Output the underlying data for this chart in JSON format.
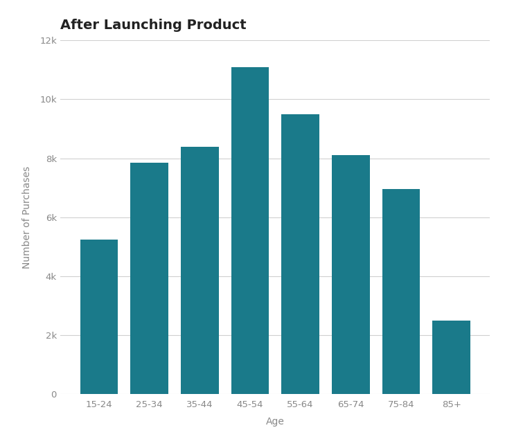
{
  "title": "After Launching Product",
  "categories": [
    "15-24",
    "25-34",
    "35-44",
    "45-54",
    "55-64",
    "65-74",
    "75-84",
    "85+"
  ],
  "values": [
    5250,
    7850,
    8400,
    11100,
    9500,
    8100,
    6950,
    2500
  ],
  "bar_color": "#1a7a8a",
  "xlabel": "Age",
  "ylabel": "Number of Purchases",
  "ylim": [
    0,
    12000
  ],
  "yticks": [
    0,
    2000,
    4000,
    6000,
    8000,
    10000,
    12000
  ],
  "ytick_labels": [
    "0",
    "2k",
    "4k",
    "6k",
    "8k",
    "10k",
    "12k"
  ],
  "background_color": "#ffffff",
  "grid_color": "#d0d0d0",
  "title_fontsize": 14,
  "axis_label_fontsize": 10,
  "tick_fontsize": 9.5,
  "title_color": "#222222",
  "label_color": "#888888",
  "bar_width": 0.75
}
